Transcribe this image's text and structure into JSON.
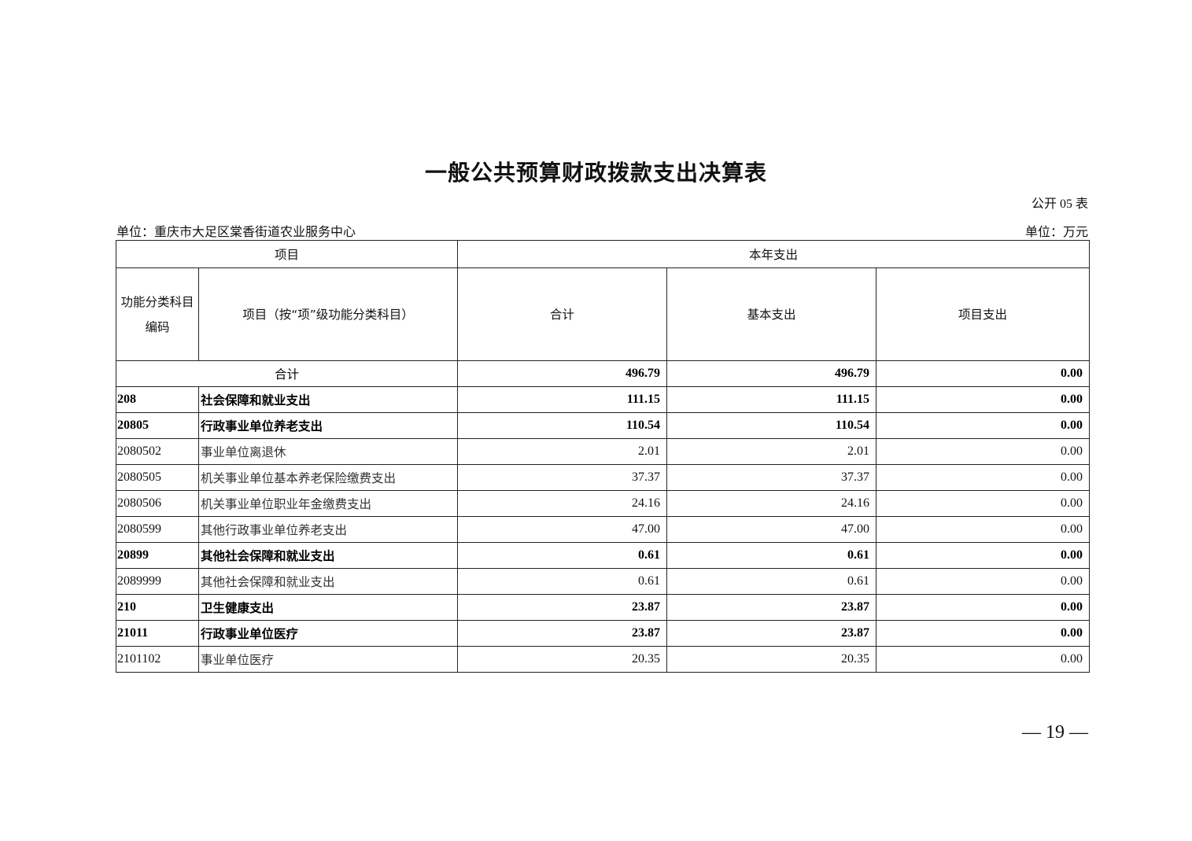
{
  "title": "一般公共预算财政拨款支出决算表",
  "table_no": "公开 05 表",
  "unit_org": "单位：重庆市大足区棠香街道农业服务中心",
  "unit_money": "单位：万元",
  "headers": {
    "project": "项目",
    "current_year": "本年支出",
    "code": "功能分类科目编码",
    "name": "项目（按“项”级功能分类科目）",
    "total": "合计",
    "basic": "基本支出",
    "program": "项目支出"
  },
  "total_row": {
    "label": "合计",
    "total": "496.79",
    "basic": "496.79",
    "program": "0.00"
  },
  "rows": [
    {
      "code": "208",
      "name": "社会保障和就业支出",
      "total": "111.15",
      "basic": "111.15",
      "program": "0.00",
      "bold": true
    },
    {
      "code": "20805",
      "name": "行政事业单位养老支出",
      "total": "110.54",
      "basic": "110.54",
      "program": "0.00",
      "bold": true
    },
    {
      "code": "2080502",
      "name": "事业单位离退休",
      "total": "2.01",
      "basic": "2.01",
      "program": "0.00",
      "bold": false
    },
    {
      "code": "2080505",
      "name": "机关事业单位基本养老保险缴费支出",
      "total": "37.37",
      "basic": "37.37",
      "program": "0.00",
      "bold": false
    },
    {
      "code": "2080506",
      "name": "机关事业单位职业年金缴费支出",
      "total": "24.16",
      "basic": "24.16",
      "program": "0.00",
      "bold": false
    },
    {
      "code": "2080599",
      "name": "其他行政事业单位养老支出",
      "total": "47.00",
      "basic": "47.00",
      "program": "0.00",
      "bold": false
    },
    {
      "code": "20899",
      "name": "其他社会保障和就业支出",
      "total": "0.61",
      "basic": "0.61",
      "program": "0.00",
      "bold": true
    },
    {
      "code": "2089999",
      "name": "其他社会保障和就业支出",
      "total": "0.61",
      "basic": "0.61",
      "program": "0.00",
      "bold": false
    },
    {
      "code": "210",
      "name": "卫生健康支出",
      "total": "23.87",
      "basic": "23.87",
      "program": "0.00",
      "bold": true
    },
    {
      "code": "21011",
      "name": "行政事业单位医疗",
      "total": "23.87",
      "basic": "23.87",
      "program": "0.00",
      "bold": true
    },
    {
      "code": "2101102",
      "name": "事业单位医疗",
      "total": "20.35",
      "basic": "20.35",
      "program": "0.00",
      "bold": false
    }
  ],
  "page_number": "— 19 —"
}
